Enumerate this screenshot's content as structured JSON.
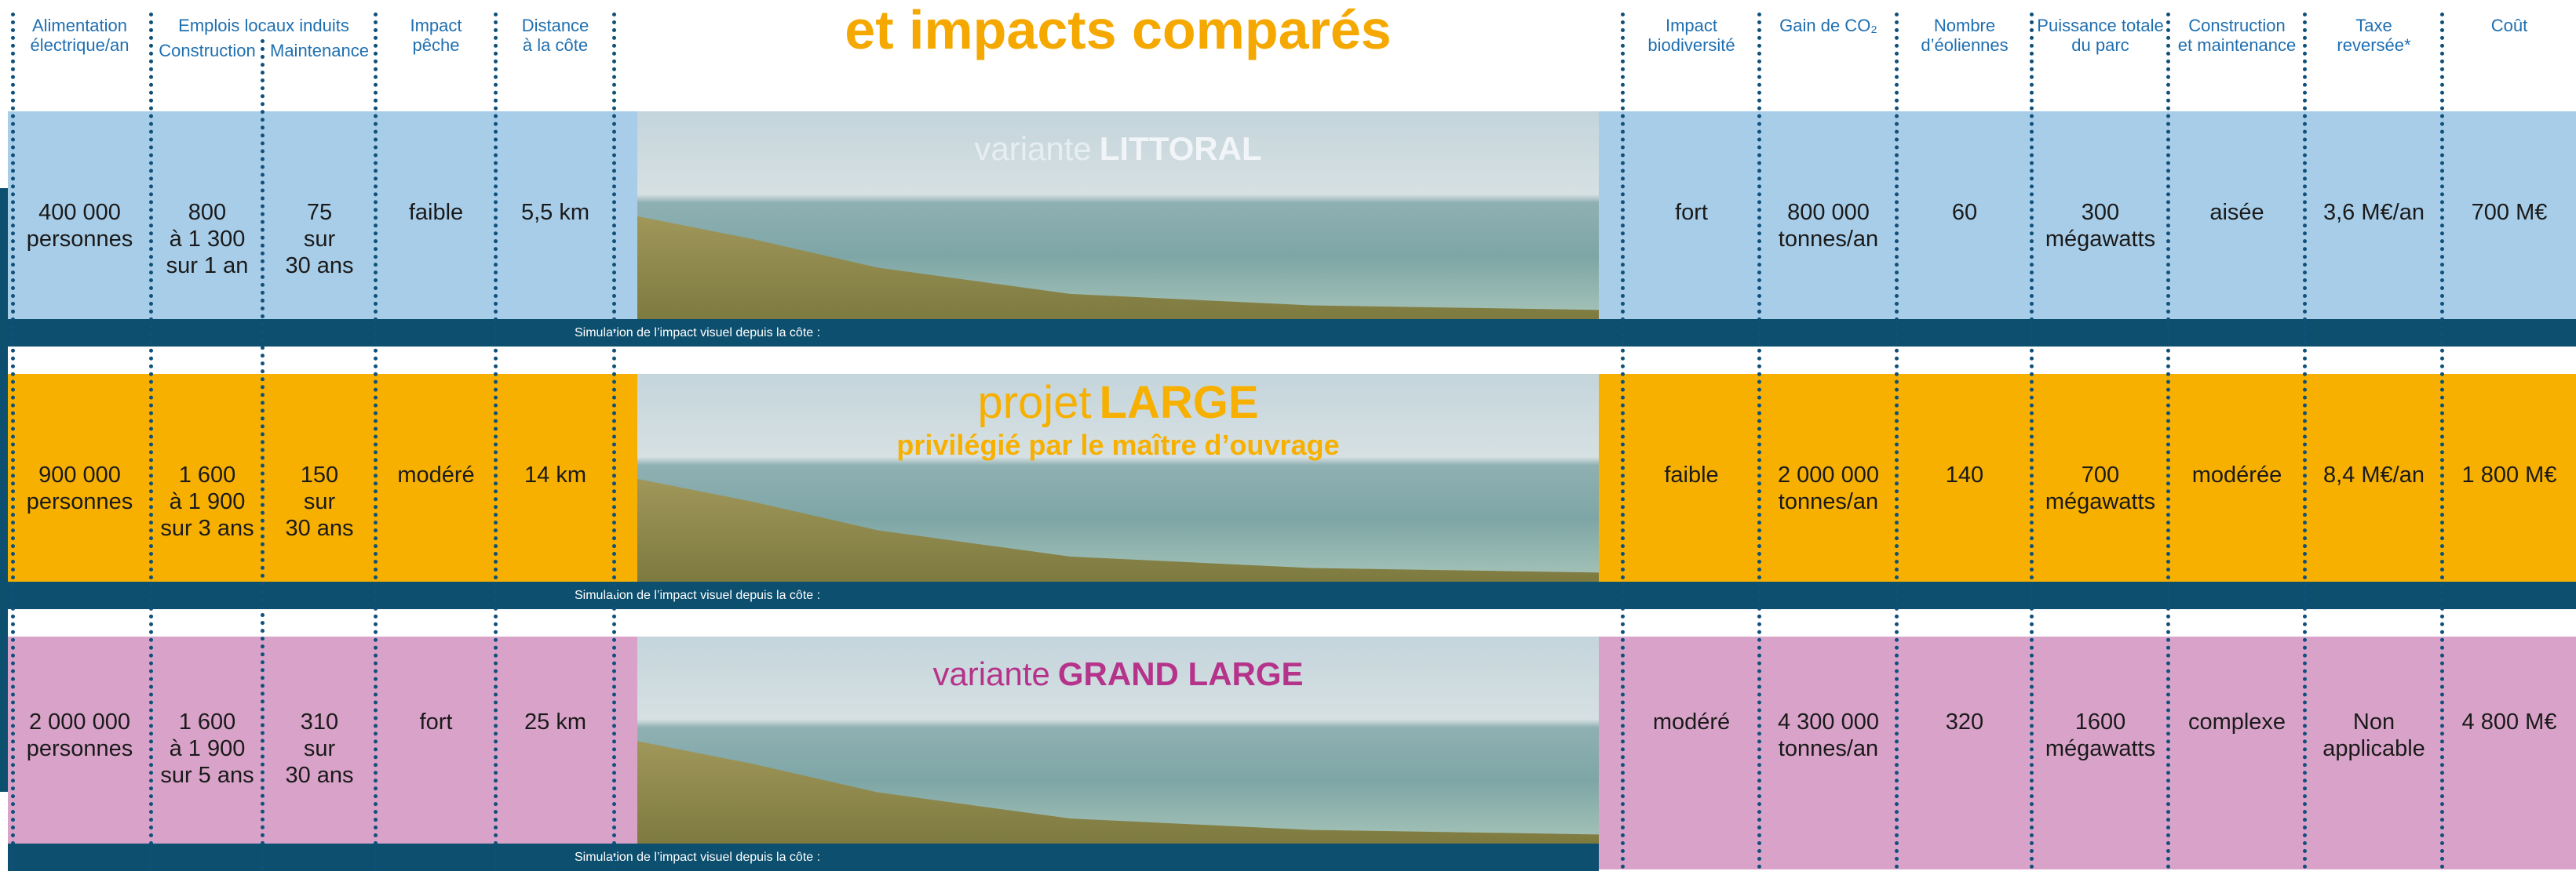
{
  "header": {
    "title": "et impacts comparés",
    "jobs_group": "Emplois locaux induits",
    "columns_left": [
      "Alimentation\nélectrique/an",
      "Construction",
      "Maintenance",
      "Impact\npêche",
      "Distance\nà la côte"
    ],
    "columns_right": [
      "Impact\nbiodiversité",
      "Gain de CO₂",
      "Nombre\nd’éoliennes",
      "Puissance totale\ndu parc",
      "Construction\net maintenance",
      "Taxe\nreversée*",
      "Coût"
    ]
  },
  "rows": [
    {
      "variant_prefix": "variante",
      "variant_name": "LITTORAL",
      "left": [
        "400 000\npersonnes",
        "800\nà 1 300\nsur 1 an",
        "75\nsur\n30 ans",
        "faible",
        "5,5 km"
      ],
      "right": [
        "fort",
        "800 000\ntonnes/an",
        "60",
        "300\nmégawatts",
        "aisée",
        "3,6 M€/an",
        "700 M€"
      ],
      "simulation_caption": "Simulation de l’impact visuel depuis la côte :"
    },
    {
      "variant_prefix": "projet",
      "variant_name": "LARGE",
      "variant_subtitle": "privilégié par le maître d’ouvrage",
      "left": [
        "900 000\npersonnes",
        "1 600\nà 1 900\nsur 3 ans",
        "150\nsur\n30 ans",
        "modéré",
        "14 km"
      ],
      "right": [
        "faible",
        "2 000 000\ntonnes/an",
        "140",
        "700\nmégawatts",
        "modérée",
        "8,4 M€/an",
        "1 800 M€"
      ],
      "simulation_caption": "Simulation de l’impact visuel depuis la côte :"
    },
    {
      "variant_prefix": "variante",
      "variant_name": "GRAND LARGE",
      "left": [
        "2 000 000\npersonnes",
        "1 600\nà 1 900\nsur 5 ans",
        "310\nsur\n30 ans",
        "fort",
        "25 km"
      ],
      "right": [
        "modéré",
        "4 300 000\ntonnes/an",
        "320",
        "1600\nmégawatts",
        "complexe",
        "Non\napplicable",
        "4 800 M€"
      ],
      "simulation_caption": "Simulation de l’impact visuel depuis la côte :"
    }
  ]
}
